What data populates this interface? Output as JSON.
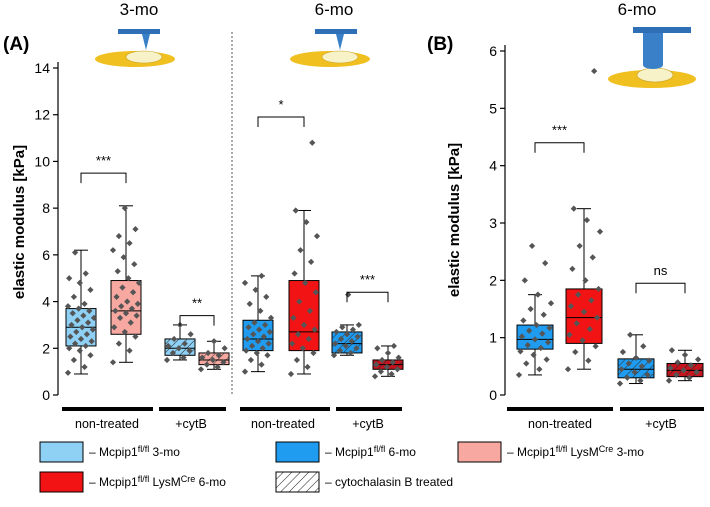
{
  "chart_data": [
    {
      "panel": "(A)",
      "type": "box",
      "titles": [
        "3-mo",
        "6-mo"
      ],
      "ylabel": "elastic modulus [kPa]",
      "ylim": [
        0,
        14
      ],
      "yticks": [
        "0",
        "2",
        "4",
        "6",
        "8",
        "10",
        "12",
        "14"
      ],
      "group_labels": [
        "non-treated",
        "+cytB",
        "non-treated",
        "+cytB"
      ],
      "boxes": [
        {
          "name": "Mcpip1 fl/fl 3-mo",
          "color": "#8fd0f5",
          "hatched": false,
          "whisker_low": 0.9,
          "q1": 2.1,
          "median": 2.9,
          "q3": 3.7,
          "whisker_high": 6.2,
          "points": [
            0.95,
            1.2,
            1.5,
            1.7,
            1.9,
            2.0,
            2.1,
            2.2,
            2.3,
            2.4,
            2.5,
            2.6,
            2.7,
            2.8,
            2.9,
            3.0,
            3.1,
            3.2,
            3.3,
            3.4,
            3.5,
            3.6,
            3.7,
            3.8,
            3.9,
            4.2,
            4.5,
            4.8,
            5.0,
            5.2,
            6.1
          ]
        },
        {
          "name": "Mcpip1 fl/fl LysMCre 3-mo",
          "color": "#f7a8a1",
          "hatched": false,
          "whisker_low": 1.4,
          "q1": 2.6,
          "median": 3.6,
          "q3": 4.9,
          "whisker_high": 8.1,
          "points": [
            1.4,
            1.9,
            2.2,
            2.5,
            2.7,
            2.9,
            3.1,
            3.3,
            3.4,
            3.5,
            3.6,
            3.7,
            3.8,
            3.9,
            4.0,
            4.2,
            4.4,
            4.6,
            4.8,
            5.0,
            5.3,
            5.6,
            5.9,
            6.2,
            6.5,
            6.8,
            7.1,
            8.0
          ]
        },
        {
          "name": "Mcpip1 fl/fl 3-mo +cytB",
          "color": "#8fd0f5",
          "hatched": true,
          "whisker_low": 1.5,
          "q1": 1.7,
          "median": 2.0,
          "q3": 2.4,
          "whisker_high": 3.0,
          "points": [
            1.5,
            1.6,
            1.8,
            1.9,
            2.0,
            2.1,
            2.2,
            2.4,
            2.6,
            3.0
          ]
        },
        {
          "name": "Mcpip1 fl/fl LysMCre 3-mo +cytB",
          "color": "#f7a8a1",
          "hatched": true,
          "whisker_low": 1.1,
          "q1": 1.3,
          "median": 1.5,
          "q3": 1.8,
          "whisker_high": 2.3,
          "points": [
            1.1,
            1.2,
            1.3,
            1.4,
            1.5,
            1.6,
            1.7,
            1.8,
            2.0,
            2.3
          ]
        },
        {
          "name": "Mcpip1 fl/fl 6-mo",
          "color": "#1f9bf0",
          "hatched": false,
          "whisker_low": 1.0,
          "q1": 1.9,
          "median": 2.4,
          "q3": 3.2,
          "whisker_high": 5.1,
          "points": [
            1.0,
            1.3,
            1.5,
            1.7,
            1.8,
            1.9,
            2.0,
            2.1,
            2.2,
            2.3,
            2.4,
            2.5,
            2.6,
            2.7,
            2.8,
            2.9,
            3.0,
            3.1,
            3.3,
            3.6,
            3.9,
            4.2,
            4.5,
            4.8,
            5.1
          ]
        },
        {
          "name": "Mcpip1 fl/fl LysMCre 6-mo",
          "color": "#f21414",
          "hatched": false,
          "whisker_low": 0.9,
          "q1": 1.9,
          "median": 2.7,
          "q3": 4.9,
          "whisker_high": 7.9,
          "points": [
            0.9,
            1.2,
            1.5,
            1.8,
            2.0,
            2.2,
            2.4,
            2.6,
            2.8,
            3.0,
            3.3,
            3.6,
            4.0,
            4.4,
            4.8,
            5.2,
            5.7,
            6.2,
            6.8,
            7.4,
            7.9,
            10.8
          ]
        },
        {
          "name": "Mcpip1 fl/fl 6-mo +cytB",
          "color": "#1f9bf0",
          "hatched": true,
          "whisker_low": 1.7,
          "q1": 1.8,
          "median": 2.2,
          "q3": 2.7,
          "whisker_high": 3.0,
          "points": [
            1.7,
            1.8,
            1.9,
            2.0,
            2.1,
            2.2,
            2.3,
            2.4,
            2.5,
            2.6,
            2.7,
            2.8,
            2.9,
            3.0,
            4.3
          ]
        },
        {
          "name": "Mcpip1 fl/fl LysMCre 6-mo +cytB",
          "color": "#c8141e",
          "hatched": true,
          "whisker_low": 0.8,
          "q1": 1.1,
          "median": 1.3,
          "q3": 1.5,
          "whisker_high": 2.1,
          "points": [
            0.8,
            0.9,
            1.0,
            1.1,
            1.2,
            1.3,
            1.4,
            1.5,
            1.6,
            1.8,
            2.0,
            2.1
          ]
        }
      ],
      "significance": [
        {
          "label": "***",
          "between": [
            0,
            1
          ],
          "y": 9.5
        },
        {
          "label": "**",
          "between": [
            2,
            3
          ],
          "y": 3.4
        },
        {
          "label": "*",
          "between": [
            4,
            5
          ],
          "y": 11.9
        },
        {
          "label": "***",
          "between": [
            6,
            7
          ],
          "y": 4.4
        }
      ]
    },
    {
      "panel": "(B)",
      "type": "box",
      "titles": [
        "6-mo"
      ],
      "ylabel": "elastic modulus [kPa]",
      "ylim": [
        0,
        6
      ],
      "yticks": [
        "0",
        "1",
        "2",
        "3",
        "4",
        "5",
        "6"
      ],
      "group_labels": [
        "non-treated",
        "+cytB"
      ],
      "boxes": [
        {
          "name": "Mcpip1 fl/fl 6-mo",
          "color": "#1f9bf0",
          "hatched": false,
          "whisker_low": 0.35,
          "q1": 0.8,
          "median": 0.97,
          "q3": 1.22,
          "whisker_high": 1.75,
          "points": [
            0.35,
            0.45,
            0.55,
            0.62,
            0.7,
            0.76,
            0.82,
            0.87,
            0.92,
            0.97,
            1.02,
            1.07,
            1.12,
            1.17,
            1.22,
            1.3,
            1.4,
            1.5,
            1.6,
            1.75,
            2.0,
            2.3,
            2.6
          ]
        },
        {
          "name": "Mcpip1 fl/fl LysMCre 6-mo",
          "color": "#f21414",
          "hatched": false,
          "whisker_low": 0.45,
          "q1": 0.9,
          "median": 1.35,
          "q3": 1.85,
          "whisker_high": 3.25,
          "points": [
            0.45,
            0.6,
            0.75,
            0.85,
            0.95,
            1.05,
            1.15,
            1.25,
            1.35,
            1.45,
            1.55,
            1.65,
            1.75,
            1.85,
            2.0,
            2.2,
            2.4,
            2.6,
            2.85,
            3.05,
            3.25,
            5.65
          ]
        },
        {
          "name": "Mcpip1 fl/fl 6-mo +cytB",
          "color": "#1f9bf0",
          "hatched": true,
          "whisker_low": 0.2,
          "q1": 0.3,
          "median": 0.45,
          "q3": 0.63,
          "whisker_high": 1.05,
          "points": [
            0.2,
            0.25,
            0.3,
            0.35,
            0.4,
            0.45,
            0.5,
            0.55,
            0.6,
            0.65,
            0.75,
            0.85,
            1.05
          ]
        },
        {
          "name": "Mcpip1 fl/fl LysMCre 6-mo +cytB",
          "color": "#c8141e",
          "hatched": true,
          "whisker_low": 0.25,
          "q1": 0.32,
          "median": 0.43,
          "q3": 0.55,
          "whisker_high": 0.78,
          "points": [
            0.25,
            0.3,
            0.35,
            0.4,
            0.43,
            0.47,
            0.52,
            0.57,
            0.62,
            0.7,
            0.78
          ]
        }
      ],
      "significance": [
        {
          "label": "***",
          "between": [
            0,
            1
          ],
          "y": 4.4
        },
        {
          "label": "ns",
          "between": [
            2,
            3
          ],
          "y": 1.95
        }
      ]
    }
  ],
  "legend": [
    {
      "name": "Mcpip1 fl/fl 3-mo",
      "pre": "– Mcpip1",
      "sup": "fl/fl",
      "mid": " 3-mo",
      "sup2": "",
      "post": "",
      "color": "#8fd0f5",
      "hatched": false
    },
    {
      "name": "Mcpip1 fl/fl 6-mo",
      "pre": "– Mcpip1",
      "sup": "fl/fl",
      "mid": " 6-mo",
      "sup2": "",
      "post": "",
      "color": "#1f9bf0",
      "hatched": false
    },
    {
      "name": "Mcpip1 fl/fl LysMCre 3-mo",
      "pre": "– Mcpip1",
      "sup": "fl/fl",
      "mid": " LysM",
      "sup2": "Cre",
      "post": " 3-mo",
      "color": "#f7a8a1",
      "hatched": false
    },
    {
      "name": "Mcpip1 fl/fl LysMCre 6-mo",
      "pre": "– Mcpip1",
      "sup": "fl/fl",
      "mid": " LysM",
      "sup2": "Cre",
      "post": " 6-mo",
      "color": "#f21414",
      "hatched": false
    },
    {
      "name": "cytochalasin B treated",
      "pre": "– cytochalasin B treated",
      "sup": "",
      "mid": "",
      "sup2": "",
      "post": "",
      "color": "#ffffff",
      "hatched": true
    }
  ]
}
